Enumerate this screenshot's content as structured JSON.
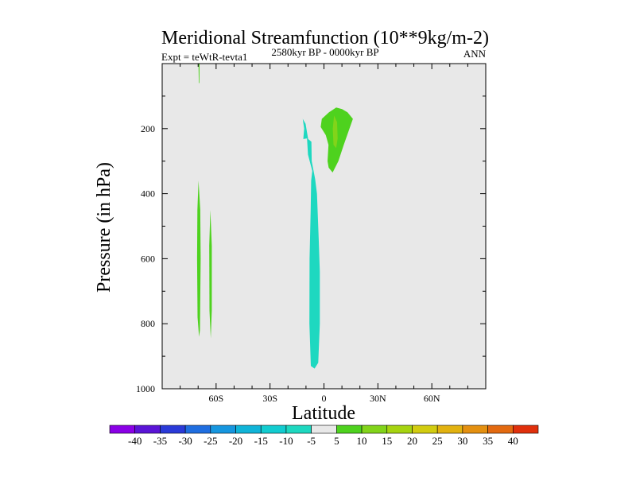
{
  "chart_data": {
    "type": "contour",
    "title": "Meridional Streamfunction (10**9kg/m-2)",
    "subtitle_left": "Expt = teWtR-tevta1",
    "subtitle_center": "2580kyr BP - 0000kyr BP",
    "subtitle_right": "ANN",
    "xlabel": "Latitude",
    "ylabel": "Pressure (in hPa)",
    "xlim": [
      -90,
      90
    ],
    "ylim": [
      1000,
      0
    ],
    "xticks": [
      {
        "value": -60,
        "label": "60S"
      },
      {
        "value": -30,
        "label": "30S"
      },
      {
        "value": 0,
        "label": "0"
      },
      {
        "value": 30,
        "label": "30N"
      },
      {
        "value": 60,
        "label": "60N"
      }
    ],
    "yticks": [
      {
        "value": 200,
        "label": "200"
      },
      {
        "value": 400,
        "label": "400"
      },
      {
        "value": 600,
        "label": "600"
      },
      {
        "value": 800,
        "label": "800"
      },
      {
        "value": 1000,
        "label": "1000"
      }
    ],
    "background_color": "#e8e8e8",
    "colorbar": {
      "levels": [
        "-40",
        "-35",
        "-30",
        "-25",
        "-20",
        "-15",
        "-10",
        "-5",
        "5",
        "10",
        "15",
        "20",
        "25",
        "30",
        "35",
        "40"
      ],
      "colors": [
        "#8a00e6",
        "#5a14d6",
        "#2a3ad8",
        "#1f6ee0",
        "#1696df",
        "#10b4d8",
        "#12ccd0",
        "#1ed8c0",
        "#e8e8e8",
        "#4ed21e",
        "#82d41a",
        "#a6d410",
        "#d2cc10",
        "#e2b210",
        "#e49010",
        "#e36a10",
        "#e0300c"
      ]
    },
    "regions": [
      {
        "name": "thin-positive-sliver-top",
        "fill": "#4ed21e",
        "points": [
          [
            -69.8,
            0
          ],
          [
            -69.2,
            0
          ],
          [
            -69.3,
            60
          ],
          [
            -69.6,
            60
          ]
        ]
      },
      {
        "name": "positive-column-1",
        "fill": "#4ed21e",
        "points": [
          [
            -69.8,
            360
          ],
          [
            -68.8,
            450
          ],
          [
            -68.6,
            600
          ],
          [
            -69.0,
            820
          ],
          [
            -69.5,
            840
          ],
          [
            -70.3,
            780
          ],
          [
            -70.6,
            600
          ],
          [
            -70.4,
            450
          ]
        ]
      },
      {
        "name": "positive-column-2",
        "fill": "#4ed21e",
        "points": [
          [
            -63.2,
            450
          ],
          [
            -62.4,
            560
          ],
          [
            -62.4,
            760
          ],
          [
            -63.0,
            845
          ],
          [
            -63.7,
            760
          ],
          [
            -63.8,
            560
          ]
        ]
      },
      {
        "name": "negative-equatorial-column",
        "fill": "#1ed8c0",
        "points": [
          [
            -11.8,
            170
          ],
          [
            -10.2,
            185
          ],
          [
            -8.8,
            232
          ],
          [
            -7.0,
            240
          ],
          [
            -6.8,
            300
          ],
          [
            -4.9,
            355
          ],
          [
            -3.9,
            400
          ],
          [
            -2.9,
            540
          ],
          [
            -2.3,
            640
          ],
          [
            -2.3,
            800
          ],
          [
            -3.2,
            920
          ],
          [
            -5.2,
            938
          ],
          [
            -7.3,
            930
          ],
          [
            -8.1,
            800
          ],
          [
            -8.0,
            600
          ],
          [
            -7.4,
            450
          ],
          [
            -7.1,
            360
          ],
          [
            -6.5,
            330
          ],
          [
            -8.9,
            280
          ],
          [
            -9.4,
            230
          ],
          [
            -11.5,
            232
          ],
          [
            -11.0,
            200
          ]
        ]
      },
      {
        "name": "positive-upper-lobe",
        "fill": "#4ed21e",
        "points": [
          [
            -1.2,
            170
          ],
          [
            2.8,
            150
          ],
          [
            6.8,
            135
          ],
          [
            10.1,
            140
          ],
          [
            13.1,
            150
          ],
          [
            16.1,
            170
          ],
          [
            14.2,
            200
          ],
          [
            11.0,
            250
          ],
          [
            8.0,
            300
          ],
          [
            4.8,
            335
          ],
          [
            2.6,
            320
          ],
          [
            2.0,
            300
          ],
          [
            2.5,
            250
          ],
          [
            1.0,
            220
          ],
          [
            -1.8,
            195
          ]
        ]
      },
      {
        "name": "positive-upper-core",
        "fill": "#82d41a",
        "points": [
          [
            5.6,
            160
          ],
          [
            7.3,
            180
          ],
          [
            7.6,
            230
          ],
          [
            6.8,
            260
          ],
          [
            5.3,
            250
          ],
          [
            4.9,
            200
          ]
        ]
      }
    ]
  }
}
